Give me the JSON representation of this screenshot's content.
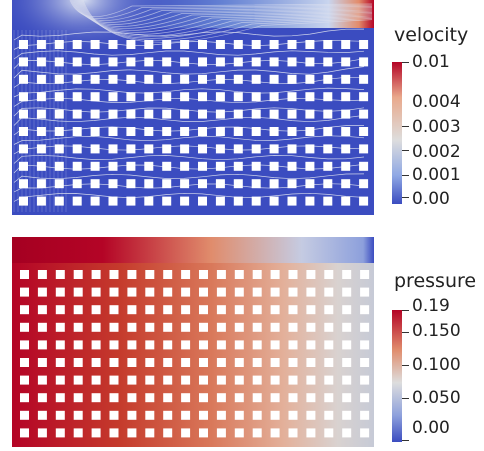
{
  "velocity_plot": {
    "colorbar": {
      "title": "velocity",
      "ticks": [
        "0.01",
        "0.004",
        "0.003",
        "0.002",
        "0.001",
        "0.00"
      ],
      "colors": {
        "low": "#3b4cc0",
        "mid": "#dddddd",
        "high": "#b40426"
      }
    }
  },
  "pressure_plot": {
    "colorbar": {
      "title": "pressure",
      "ticks": [
        "0.19",
        "0.150",
        "0.100",
        "0.050",
        "0.00"
      ],
      "colors": {
        "low": "#3b4cc0",
        "mid": "#dddddd",
        "high": "#b40426"
      }
    }
  },
  "layout": {
    "obstacle_grid": {
      "columns": 20,
      "rows": 10
    }
  }
}
